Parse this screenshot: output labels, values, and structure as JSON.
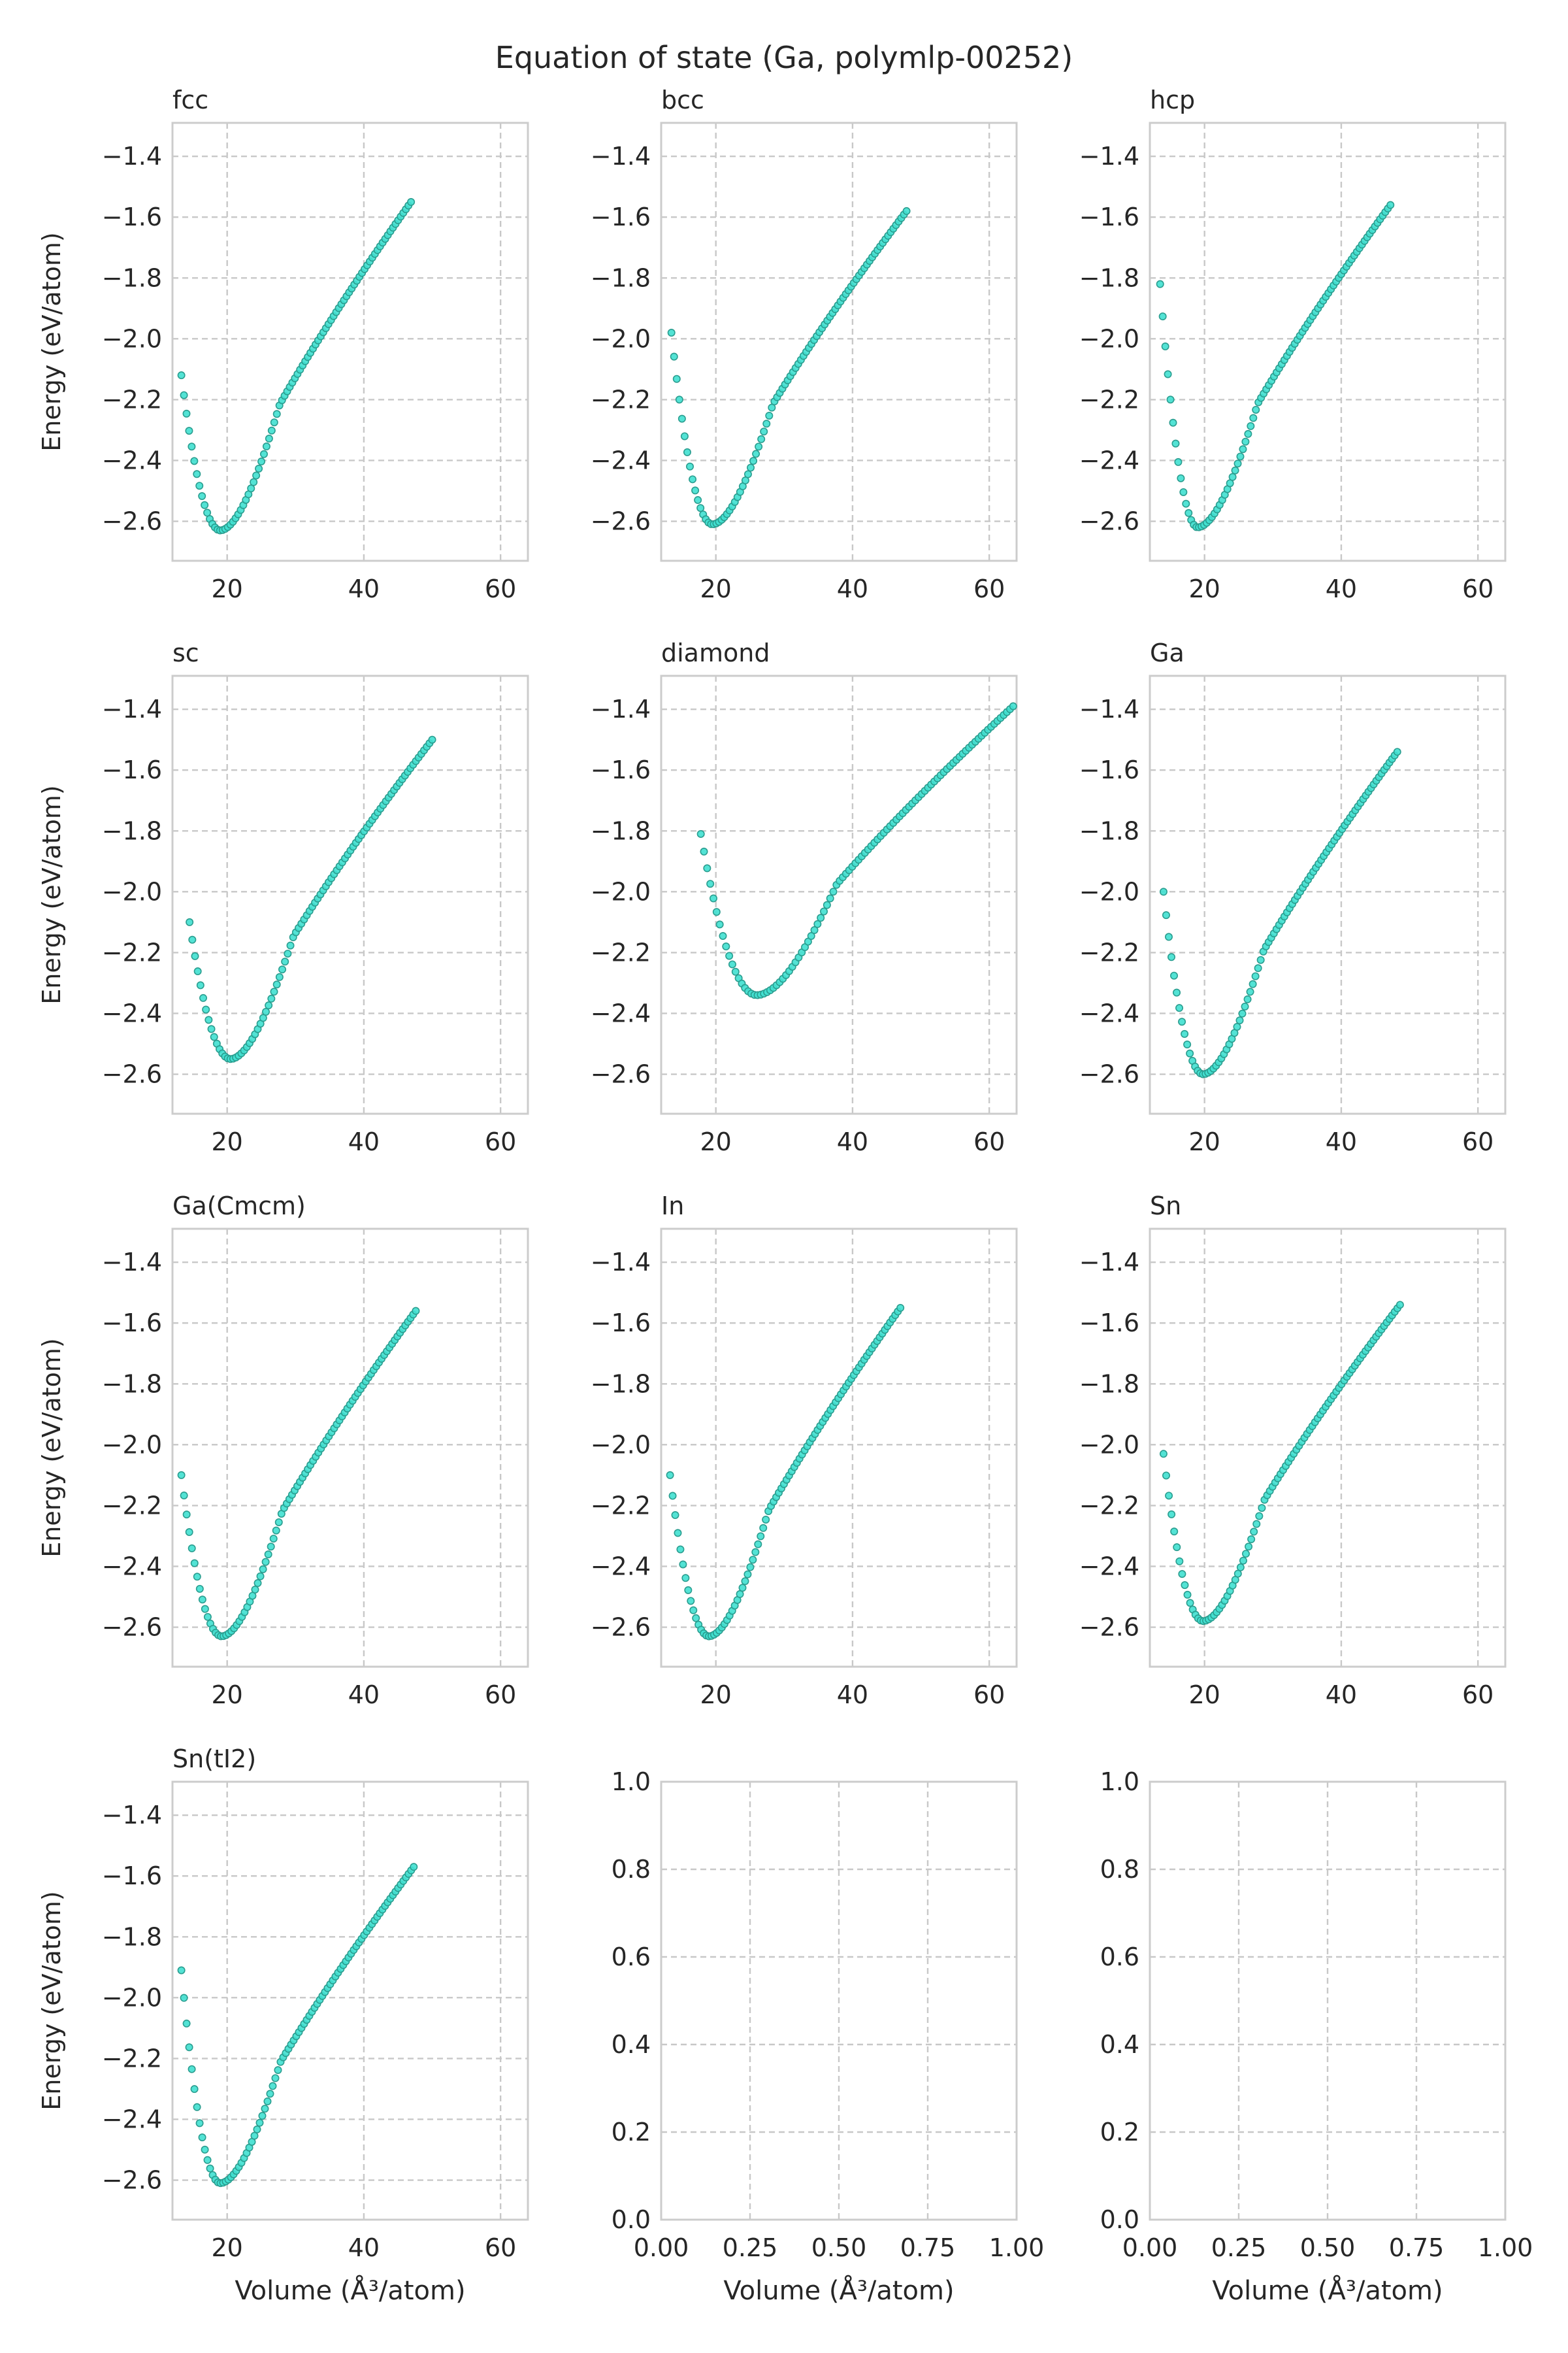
{
  "figure": {
    "title": "Equation of state (Ga, polymlp-00252)",
    "marker_fill": "#40e0d0",
    "marker_edge": "#2a9d8f",
    "grid_color": "#c8c8c8",
    "spine_color": "#cccccc"
  },
  "chart_data": [
    {
      "type": "scatter",
      "title": "fcc",
      "xlabel": "",
      "ylabel": "Energy (eV/atom)",
      "xlim": [
        12,
        64
      ],
      "ylim": [
        -2.73,
        -1.29
      ],
      "xticks": [
        20,
        40,
        60
      ],
      "yticks": [
        -2.6,
        -2.4,
        -2.2,
        -2.0,
        -1.8,
        -1.6,
        -1.4
      ],
      "xtick_labels": [
        "20",
        "40",
        "60"
      ],
      "ytick_labels": [
        "−2.6",
        "−2.4",
        "−2.2",
        "−2.0",
        "−1.8",
        "−1.6",
        "−1.4"
      ],
      "grid": true,
      "series": [
        {
          "x_range": [
            13.3,
            46.9
          ],
          "n": 90,
          "v0": 19.0,
          "e0": -2.63,
          "e_start": -2.12,
          "e_end": -1.55
        }
      ]
    },
    {
      "type": "scatter",
      "title": "bcc",
      "xlabel": "",
      "ylabel": "",
      "xlim": [
        12,
        64
      ],
      "ylim": [
        -2.73,
        -1.29
      ],
      "xticks": [
        20,
        40,
        60
      ],
      "yticks": [
        -2.6,
        -2.4,
        -2.2,
        -2.0,
        -1.8,
        -1.6,
        -1.4
      ],
      "xtick_labels": [
        "20",
        "40",
        "60"
      ],
      "ytick_labels": [
        "−2.6",
        "−2.4",
        "−2.2",
        "−2.0",
        "−1.8",
        "−1.6",
        "−1.4"
      ],
      "grid": true,
      "series": [
        {
          "x_range": [
            13.5,
            47.9
          ],
          "n": 90,
          "v0": 19.5,
          "e0": -2.61,
          "e_start": -1.98,
          "e_end": -1.58
        }
      ]
    },
    {
      "type": "scatter",
      "title": "hcp",
      "xlabel": "",
      "ylabel": "",
      "xlim": [
        12,
        64
      ],
      "ylim": [
        -2.73,
        -1.29
      ],
      "xticks": [
        20,
        40,
        60
      ],
      "yticks": [
        -2.6,
        -2.4,
        -2.2,
        -2.0,
        -1.8,
        -1.6,
        -1.4
      ],
      "xtick_labels": [
        "20",
        "40",
        "60"
      ],
      "ytick_labels": [
        "−2.6",
        "−2.4",
        "−2.2",
        "−2.0",
        "−1.8",
        "−1.6",
        "−1.4"
      ],
      "grid": true,
      "series": [
        {
          "x_range": [
            13.5,
            47.2
          ],
          "n": 90,
          "v0": 19.0,
          "e0": -2.62,
          "e_start": -1.82,
          "e_end": -1.56
        }
      ]
    },
    {
      "type": "scatter",
      "title": "sc",
      "xlabel": "",
      "ylabel": "Energy (eV/atom)",
      "xlim": [
        12,
        64
      ],
      "ylim": [
        -2.73,
        -1.29
      ],
      "xticks": [
        20,
        40,
        60
      ],
      "yticks": [
        -2.6,
        -2.4,
        -2.2,
        -2.0,
        -1.8,
        -1.6,
        -1.4
      ],
      "xtick_labels": [
        "20",
        "40",
        "60"
      ],
      "ytick_labels": [
        "−2.6",
        "−2.4",
        "−2.2",
        "−2.0",
        "−1.8",
        "−1.6",
        "−1.4"
      ],
      "grid": true,
      "series": [
        {
          "x_range": [
            14.5,
            50.0
          ],
          "n": 90,
          "v0": 20.5,
          "e0": -2.55,
          "e_start": -2.1,
          "e_end": -1.5
        }
      ]
    },
    {
      "type": "scatter",
      "title": "diamond",
      "xlabel": "",
      "ylabel": "",
      "xlim": [
        12,
        64
      ],
      "ylim": [
        -2.73,
        -1.29
      ],
      "xticks": [
        20,
        40,
        60
      ],
      "yticks": [
        -2.6,
        -2.4,
        -2.2,
        -2.0,
        -1.8,
        -1.6,
        -1.4
      ],
      "xtick_labels": [
        "20",
        "40",
        "60"
      ],
      "ytick_labels": [
        "−2.6",
        "−2.4",
        "−2.2",
        "−2.0",
        "−1.8",
        "−1.6",
        "−1.4"
      ],
      "grid": true,
      "series": [
        {
          "x_range": [
            17.8,
            63.5
          ],
          "n": 100,
          "v0": 26.0,
          "e0": -2.34,
          "e_start": -1.81,
          "e_end": -1.39
        }
      ]
    },
    {
      "type": "scatter",
      "title": "Ga",
      "xlabel": "",
      "ylabel": "",
      "xlim": [
        12,
        64
      ],
      "ylim": [
        -2.73,
        -1.29
      ],
      "xticks": [
        20,
        40,
        60
      ],
      "yticks": [
        -2.6,
        -2.4,
        -2.2,
        -2.0,
        -1.8,
        -1.6,
        -1.4
      ],
      "xtick_labels": [
        "20",
        "40",
        "60"
      ],
      "ytick_labels": [
        "−2.6",
        "−2.4",
        "−2.2",
        "−2.0",
        "−1.8",
        "−1.6",
        "−1.4"
      ],
      "grid": true,
      "series": [
        {
          "x_range": [
            14.0,
            48.2
          ],
          "n": 90,
          "v0": 19.8,
          "e0": -2.6,
          "e_start": -2.0,
          "e_end": -1.54
        }
      ]
    },
    {
      "type": "scatter",
      "title": "Ga(Cmcm)",
      "xlabel": "",
      "ylabel": "Energy (eV/atom)",
      "xlim": [
        12,
        64
      ],
      "ylim": [
        -2.73,
        -1.29
      ],
      "xticks": [
        20,
        40,
        60
      ],
      "yticks": [
        -2.6,
        -2.4,
        -2.2,
        -2.0,
        -1.8,
        -1.6,
        -1.4
      ],
      "xtick_labels": [
        "20",
        "40",
        "60"
      ],
      "ytick_labels": [
        "−2.6",
        "−2.4",
        "−2.2",
        "−2.0",
        "−1.8",
        "−1.6",
        "−1.4"
      ],
      "grid": true,
      "series": [
        {
          "x_range": [
            13.3,
            47.6
          ],
          "n": 90,
          "v0": 19.2,
          "e0": -2.63,
          "e_start": -2.1,
          "e_end": -1.56
        }
      ]
    },
    {
      "type": "scatter",
      "title": "In",
      "xlabel": "",
      "ylabel": "",
      "xlim": [
        12,
        64
      ],
      "ylim": [
        -2.73,
        -1.29
      ],
      "xticks": [
        20,
        40,
        60
      ],
      "yticks": [
        -2.6,
        -2.4,
        -2.2,
        -2.0,
        -1.8,
        -1.6,
        -1.4
      ],
      "xtick_labels": [
        "20",
        "40",
        "60"
      ],
      "ytick_labels": [
        "−2.6",
        "−2.4",
        "−2.2",
        "−2.0",
        "−1.8",
        "−1.6",
        "−1.4"
      ],
      "grid": true,
      "series": [
        {
          "x_range": [
            13.3,
            47.0
          ],
          "n": 90,
          "v0": 19.0,
          "e0": -2.63,
          "e_start": -2.1,
          "e_end": -1.55
        }
      ]
    },
    {
      "type": "scatter",
      "title": "Sn",
      "xlabel": "",
      "ylabel": "",
      "xlim": [
        12,
        64
      ],
      "ylim": [
        -2.73,
        -1.29
      ],
      "xticks": [
        20,
        40,
        60
      ],
      "yticks": [
        -2.6,
        -2.4,
        -2.2,
        -2.0,
        -1.8,
        -1.6,
        -1.4
      ],
      "xtick_labels": [
        "20",
        "40",
        "60"
      ],
      "ytick_labels": [
        "−2.6",
        "−2.4",
        "−2.2",
        "−2.0",
        "−1.8",
        "−1.6",
        "−1.4"
      ],
      "grid": true,
      "series": [
        {
          "x_range": [
            14.0,
            48.6
          ],
          "n": 90,
          "v0": 19.8,
          "e0": -2.58,
          "e_start": -2.03,
          "e_end": -1.54
        }
      ]
    },
    {
      "type": "scatter",
      "title": "Sn(tI2)",
      "xlabel": "Volume (Å³/atom)",
      "ylabel": "Energy (eV/atom)",
      "xlim": [
        12,
        64
      ],
      "ylim": [
        -2.73,
        -1.29
      ],
      "xticks": [
        20,
        40,
        60
      ],
      "yticks": [
        -2.6,
        -2.4,
        -2.2,
        -2.0,
        -1.8,
        -1.6,
        -1.4
      ],
      "xtick_labels": [
        "20",
        "40",
        "60"
      ],
      "ytick_labels": [
        "−2.6",
        "−2.4",
        "−2.2",
        "−2.0",
        "−1.8",
        "−1.6",
        "−1.4"
      ],
      "grid": true,
      "series": [
        {
          "x_range": [
            13.3,
            47.3
          ],
          "n": 90,
          "v0": 19.0,
          "e0": -2.61,
          "e_start": -1.91,
          "e_end": -1.57
        }
      ]
    },
    {
      "type": "scatter",
      "title": "",
      "xlabel": "Volume (Å³/atom)",
      "ylabel": "",
      "xlim": [
        0,
        1
      ],
      "ylim": [
        0,
        1
      ],
      "xticks": [
        0,
        0.25,
        0.5,
        0.75,
        1.0
      ],
      "yticks": [
        0,
        0.2,
        0.4,
        0.6,
        0.8,
        1.0
      ],
      "xtick_labels": [
        "0.00",
        "0.25",
        "0.50",
        "0.75",
        "1.00"
      ],
      "ytick_labels": [
        "0.0",
        "0.2",
        "0.4",
        "0.6",
        "0.8",
        "1.0"
      ],
      "grid": true,
      "series": []
    },
    {
      "type": "scatter",
      "title": "",
      "xlabel": "Volume (Å³/atom)",
      "ylabel": "",
      "xlim": [
        0,
        1
      ],
      "ylim": [
        0,
        1
      ],
      "xticks": [
        0,
        0.25,
        0.5,
        0.75,
        1.0
      ],
      "yticks": [
        0,
        0.2,
        0.4,
        0.6,
        0.8,
        1.0
      ],
      "xtick_labels": [
        "0.00",
        "0.25",
        "0.50",
        "0.75",
        "1.00"
      ],
      "ytick_labels": [
        "0.0",
        "0.2",
        "0.4",
        "0.6",
        "0.8",
        "1.0"
      ],
      "grid": true,
      "series": []
    }
  ]
}
